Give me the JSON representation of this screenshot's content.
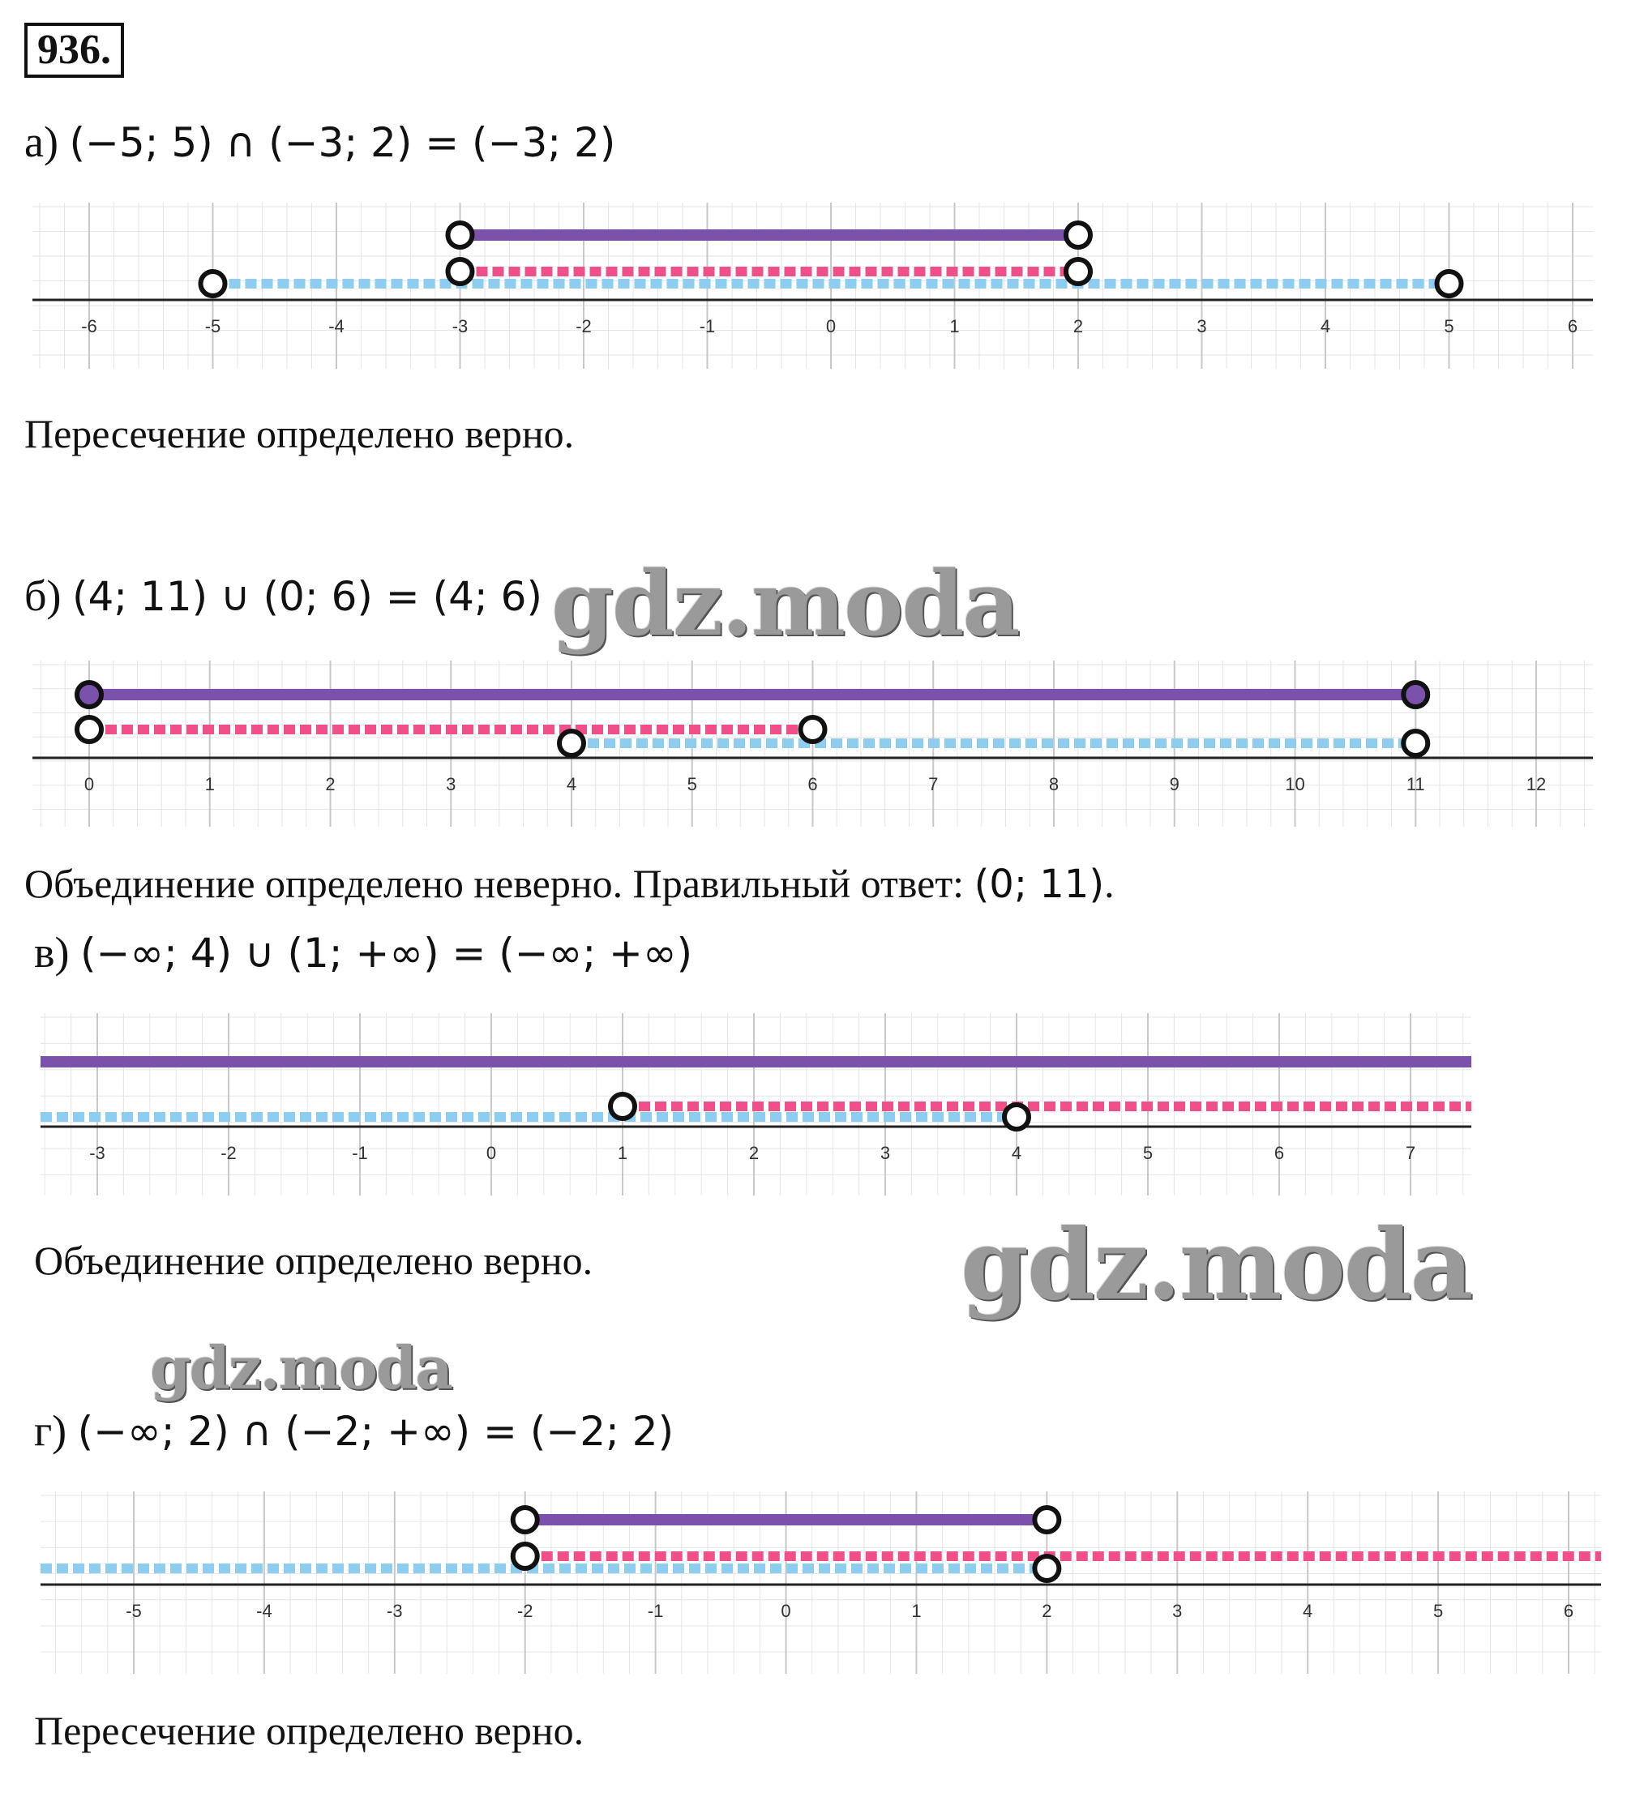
{
  "task_number": "936.",
  "colors": {
    "result": "#7b52ab",
    "set_pink": "#f0508a",
    "set_blue": "#8ecdf0",
    "grid": "#e6e6e6",
    "axis": "#222222"
  },
  "parts": [
    {
      "prefix": "а)",
      "expr": "(−5; 5) ∩ (−3; 2) = (−3; 2)",
      "verdict": "Пересечение определено верно.",
      "verdict_math": "",
      "verdict_end": "",
      "axis": {
        "min": -6,
        "max": 6,
        "ticks": [
          "-6",
          "-5",
          "-4",
          "-3",
          "-2",
          "-1",
          "0",
          "1",
          "2",
          "3",
          "4",
          "5",
          "6"
        ]
      },
      "result": {
        "from": -3,
        "to": 2
      },
      "pink": {
        "from": -3,
        "to": 2
      },
      "blue": {
        "from": -5,
        "to": 5
      }
    },
    {
      "prefix": "б)",
      "expr": "(4; 11) ∪ (0; 6) = (4; 6)",
      "verdict": "Объединение определено неверно. Правильный ответ: ",
      "verdict_math": "(0; 11)",
      "verdict_end": ".",
      "axis": {
        "min": 0,
        "max": 12,
        "ticks": [
          "0",
          "1",
          "2",
          "3",
          "4",
          "5",
          "6",
          "7",
          "8",
          "9",
          "10",
          "11",
          "12"
        ]
      },
      "result": {
        "from": 0,
        "to": 11
      },
      "pink": {
        "from": 0,
        "to": 6
      },
      "blue": {
        "from": 4,
        "to": 11
      }
    },
    {
      "prefix": "в)",
      "expr": "(−∞; 4) ∪ (1; +∞) = (−∞; +∞)",
      "verdict": "Объединение определено верно.",
      "verdict_math": "",
      "verdict_end": "",
      "axis": {
        "min": -3,
        "max": 7,
        "ticks": [
          "-3",
          "-2",
          "-1",
          "0",
          "1",
          "2",
          "3",
          "4",
          "5",
          "6",
          "7"
        ]
      },
      "result": {
        "from": "-inf",
        "to": "+inf"
      },
      "pink": {
        "from": 1,
        "to": "+inf"
      },
      "blue": {
        "from": "-inf",
        "to": 4
      }
    },
    {
      "prefix": "г)",
      "expr": "(−∞; 2) ∩ (−2; +∞) = (−2; 2)",
      "verdict": "Пересечение определено верно.",
      "verdict_math": "",
      "verdict_end": "",
      "axis": {
        "min": -5,
        "max": 6,
        "ticks": [
          "-5",
          "-4",
          "-3",
          "-2",
          "-1",
          "0",
          "1",
          "2",
          "3",
          "4",
          "5",
          "6"
        ]
      },
      "result": {
        "from": -2,
        "to": 2
      },
      "pink": {
        "from": -2,
        "to": "+inf"
      },
      "blue": {
        "from": "-inf",
        "to": 2
      }
    }
  ],
  "watermark": "gdz.moda"
}
